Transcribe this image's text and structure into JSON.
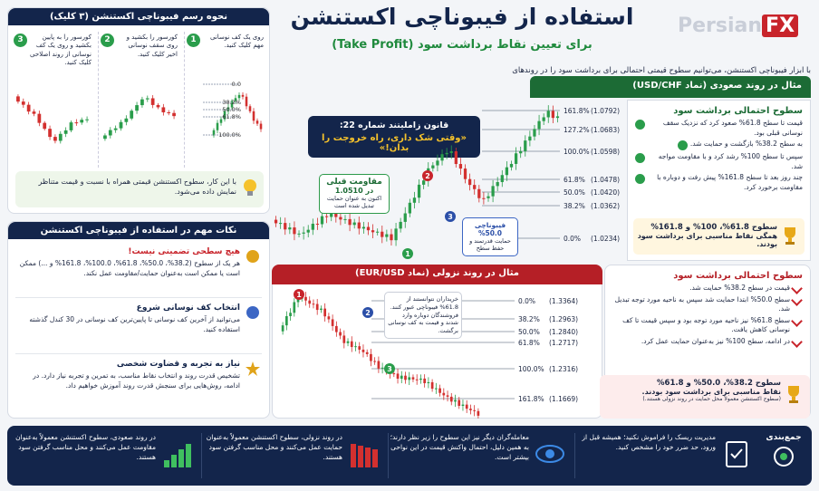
{
  "header": {
    "title": "استفاده از فیبوناچی اکستنشن",
    "subtitle": "برای تعیین نقاط برداشت سود (Take Profit)",
    "logo_main": "Persian",
    "logo_accent": "FX"
  },
  "intro": "با ابزار فیبوناچی اکستنشن، می‌توانیم سطوح قیمتی احتمالی برای برداشت سود را در روندهای صعودی و نزولی شناسایی کنیم.",
  "rule": {
    "title": "قانون زاملیتند شماره 22:",
    "quote": "«وقتی شک داری، راه خروجت را بدان!»"
  },
  "how_to": {
    "title": "نحوه رسم فیبوناچی اکستنشن (۳ کلیک)",
    "steps": [
      {
        "number": "1",
        "text": "روی یک کف نوسانی مهم کلیک کنید."
      },
      {
        "number": "2",
        "text": "کورسور را بکشید و روی سقف نوسانی اخیر کلیک کنید."
      },
      {
        "number": "3",
        "text": "کورسور را به پایین بکشید و روی یک کف نوسانی از روند اصلاحی کلیک کنید."
      }
    ],
    "levels": [
      "0.0",
      "38.2%",
      "50.0%",
      "61.8%",
      "100.0%"
    ],
    "tip": "با این کار، سطوح اکستنشن قیمتی همراه با نسبت و قیمت متناظر نمایش داده می‌شود."
  },
  "notes": {
    "title": "نکات مهم در استفاده از فیبوناچی اکستنشن",
    "items": [
      {
        "title": "هیچ سطحی تضمینی نیست!",
        "text": "هر یک از سطوح (38.2%، 50.0%، 61.8%، 100.0%، 161.8% و ...) ممکن است یا ممکن است به‌عنوان حمایت/مقاومت عمل نکند."
      },
      {
        "title": "انتخاب کف نوسانی شروع",
        "text": "می‌توانید از آخرین کف نوسانی تا پایین‌ترین کف نوسانی در 30 کندل گذشته استفاده کنید."
      },
      {
        "title": "نیاز به تجربه و قضاوت شخصی",
        "text": "تشخیص قدرت روند و انتخاب نقاط مناسب، به تمرین و تجربه نیاز دارد. در ادامه، روش‌هایی برای سنجش قدرت روند آموزش خواهیم داد."
      }
    ]
  },
  "uptrend": {
    "title": "مثال در روند صعودی (نماد USD/CHF)",
    "levels": [
      {
        "ratio": "161.8%",
        "price": "(1.0792)"
      },
      {
        "ratio": "127.2%",
        "price": "(1.0683)"
      },
      {
        "ratio": "100.0%",
        "price": "(1.0598)"
      },
      {
        "ratio": "61.8%",
        "price": "(1.0478)"
      },
      {
        "ratio": "50.0%",
        "price": "(1.0420)"
      },
      {
        "ratio": "38.2%",
        "price": "(1.0362)"
      },
      {
        "ratio": "0.0%",
        "price": "(1.0234)"
      }
    ],
    "points": [
      "1",
      "2",
      "3"
    ],
    "resistance_note": {
      "title": "مقاومت قبلی",
      "price": "در 1.0510",
      "text": "اکنون به عنوان حمایت تبدیل شده است"
    },
    "fib_note": {
      "title": "فیبوناچی 50.0%",
      "text": "حمایت قدرتمند و حفظ سطح"
    },
    "panel_title": "سطوح احتمالی برداشت سود",
    "panel_items": [
      "قیمت تا سطح 61.8% صعود کرد که نزدیک سقف نوسانی قبلی بود.",
      "به سطح 38.2% بازگشت و حمایت شد.",
      "سپس تا سطح 100% رشد کرد و با مقاومت مواجه شد.",
      "چند روز بعد تا سطح 161.8% پیش رفت و دوباره با مقاومت برخورد کرد."
    ],
    "highlight_title": "سطوح 61.8%، 100% و 161.8%",
    "highlight_text": "همگی نقاط مناسبی برای برداشت سود بودند."
  },
  "downtrend": {
    "title": "مثال در روند نزولی (نماد EUR/USD)",
    "levels": [
      {
        "ratio": "0.0%",
        "price": "(1.3364)"
      },
      {
        "ratio": "38.2%",
        "price": "(1.2963)"
      },
      {
        "ratio": "50.0%",
        "price": "(1.2840)"
      },
      {
        "ratio": "61.8%",
        "price": "(1.2717)"
      },
      {
        "ratio": "100.0%",
        "price": "(1.2316)"
      },
      {
        "ratio": "161.8%",
        "price": "(1.1669)"
      }
    ],
    "points": [
      "1",
      "2",
      "3"
    ],
    "note": "خریداران نتوانستند از 61.8% فیبوناچی عبور کنند. فروشندگان دوباره وارد شدند و قیمت به کف نوسانی برگشت.",
    "panel_title": "سطوح احتمالی برداشت سود",
    "panel_items": [
      "قیمت در سطح 38.2% حمایت شد.",
      "سطح 50.0% ابتدا حمایت شد سپس به ناحیه مورد توجه تبدیل شد.",
      "سطح 61.8% نیز ناحیه مورد توجه بود و سپس قیمت تا کف نوسانی کاهش یافت.",
      "در ادامه، سطح 100% نیز به‌عنوان حمایت عمل کرد."
    ],
    "highlight_title": "سطوح 38.2%، 50.0% و 61.8%",
    "highlight_text": "نقاط مناسبی برای برداشت سود بودند.",
    "highlight_note": "(سطوح اکستنشن معمولاً محل حمایت در روند نزولی هستند.)"
  },
  "summary": {
    "label": "جمع‌بندی",
    "items": [
      "مدیریت ریسک را فراموش نکنید؛ همیشه قبل از ورود، حد ضرر خود را مشخص کنید.",
      "معامله‌گران دیگر نیز این سطوح را زیر نظر دارند؛ به همین دلیل، احتمال واکنش قیمت در این نواحی بیشتر است.",
      "در روند نزولی، سطوح اکستنشن معمولاً به‌عنوان حمایت عمل می‌کنند و محل مناسب گرفتن سود هستند.",
      "در روند صعودی، سطوح اکستنشن معمولاً به‌عنوان مقاومت عمل می‌کنند و محل مناسب گرفتن سود هستند."
    ]
  }
}
